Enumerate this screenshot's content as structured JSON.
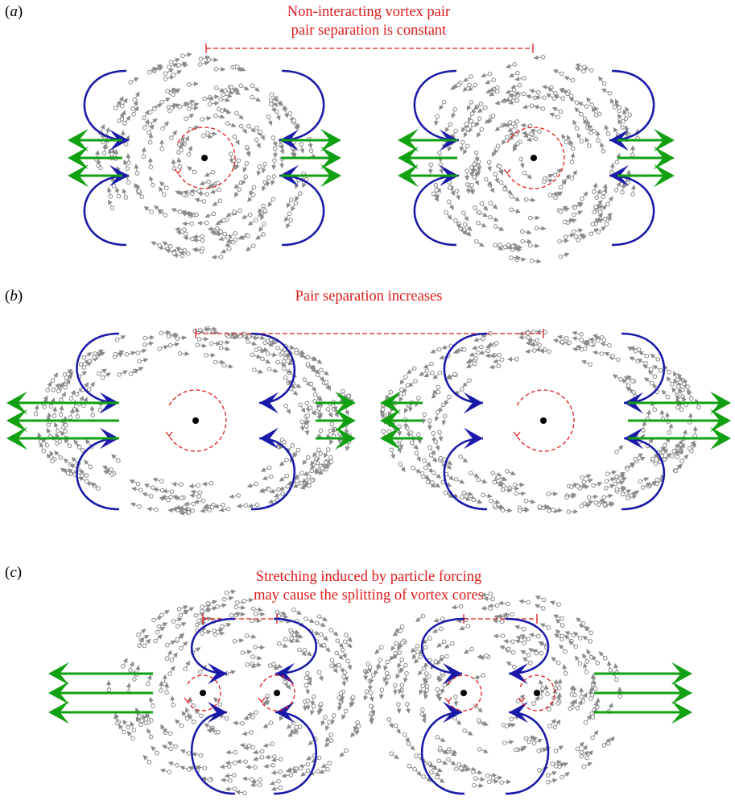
{
  "panels": [
    {
      "label_open": "(",
      "label_letter": "a",
      "label_close": ")",
      "title_lines": [
        "Non-interacting vortex pair",
        "pair separation is constant"
      ]
    },
    {
      "label_open": "(",
      "label_letter": "b",
      "label_close": ")",
      "title_lines": [
        "Pair separation increases"
      ]
    },
    {
      "label_open": "(",
      "label_letter": "c",
      "label_close": ")",
      "title_lines": [
        "Stretching induced by particle forcing",
        "may cause the splitting of vortex cores"
      ]
    }
  ],
  "colors": {
    "annotation": "#e01b1b",
    "fluid_forcing": "#1a1aa8",
    "particle_forcing": "#11a011",
    "particles": "#8a8a8a",
    "core": "#000000"
  }
}
